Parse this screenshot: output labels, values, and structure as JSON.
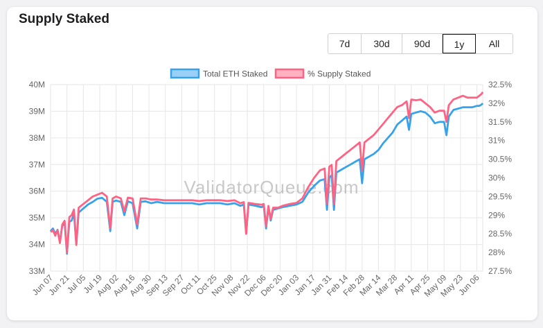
{
  "card": {
    "title": "Supply Staked"
  },
  "range_buttons": [
    {
      "label": "7d",
      "active": false
    },
    {
      "label": "30d",
      "active": false
    },
    {
      "label": "90d",
      "active": false
    },
    {
      "label": "1y",
      "active": true
    },
    {
      "label": "All",
      "active": false
    }
  ],
  "watermark": "ValidatorQueue.com",
  "colors": {
    "eth_line": "#36a2eb",
    "eth_fill": "#9ad0f5",
    "supply_line": "#ff6384",
    "supply_fill": "#ffb1c1",
    "grid": "#e6e6e6"
  },
  "chart_data": {
    "type": "line",
    "title": "",
    "legend_placement": "top-center",
    "grid": true,
    "x_tick_labels": [
      "Jun 07",
      "Jun 21",
      "Jul 05",
      "Jul 19",
      "Aug 02",
      "Aug 16",
      "Aug 30",
      "Sep 13",
      "Sep 27",
      "Oct 11",
      "Oct 25",
      "Nov 08",
      "Nov 22",
      "Dec 06",
      "Dec 20",
      "Jan 03",
      "Jan 17",
      "Jan 31",
      "Feb 14",
      "Feb 28",
      "Mar 14",
      "Mar 28",
      "Apr 11",
      "Apr 25",
      "May 09",
      "May 23",
      "Jun 06"
    ],
    "x_range": [
      "Jun 07",
      "Jun 11"
    ],
    "y_left": {
      "label": "",
      "ticks": [
        "33M",
        "34M",
        "35M",
        "36M",
        "37M",
        "38M",
        "39M",
        "40M"
      ],
      "range": [
        33,
        40
      ],
      "unit": "M"
    },
    "y_right": {
      "label": "",
      "ticks": [
        "27.5%",
        "28%",
        "28.5%",
        "29%",
        "29.5%",
        "30%",
        "30.5%",
        "31%",
        "31.5%",
        "32%",
        "32.5%"
      ],
      "range": [
        27.5,
        32.5
      ],
      "unit": "%"
    },
    "series": [
      {
        "name": "Total ETH Staked",
        "axis": "left",
        "unit": "M",
        "points": [
          [
            "Jun 07",
            34.5
          ],
          [
            "Jun 09",
            34.6
          ],
          [
            "Jun 11",
            34.4
          ],
          [
            "Jun 13",
            34.55
          ],
          [
            "Jun 15",
            34.1
          ],
          [
            "Jun 17",
            34.7
          ],
          [
            "Jun 19",
            34.8
          ],
          [
            "Jun 21",
            33.65
          ],
          [
            "Jun 23",
            34.85
          ],
          [
            "Jun 25",
            34.9
          ],
          [
            "Jun 27",
            35.15
          ],
          [
            "Jun 29",
            34.0
          ],
          [
            "Jul 01",
            35.2
          ],
          [
            "Jul 05",
            35.35
          ],
          [
            "Jul 09",
            35.5
          ],
          [
            "Jul 13",
            35.6
          ],
          [
            "Jul 17",
            35.72
          ],
          [
            "Jul 21",
            35.75
          ],
          [
            "Jul 25",
            35.6
          ],
          [
            "Jul 28",
            34.5
          ],
          [
            "Jul 30",
            35.6
          ],
          [
            "Aug 02",
            35.65
          ],
          [
            "Aug 06",
            35.6
          ],
          [
            "Aug 09",
            35.1
          ],
          [
            "Aug 12",
            35.62
          ],
          [
            "Aug 16",
            35.55
          ],
          [
            "Aug 20",
            34.6
          ],
          [
            "Aug 23",
            35.6
          ],
          [
            "Aug 27",
            35.62
          ],
          [
            "Sep 01",
            35.55
          ],
          [
            "Sep 06",
            35.6
          ],
          [
            "Sep 12",
            35.55
          ],
          [
            "Sep 18",
            35.55
          ],
          [
            "Sep 24",
            35.55
          ],
          [
            "Sep 30",
            35.55
          ],
          [
            "Oct 06",
            35.55
          ],
          [
            "Oct 12",
            35.5
          ],
          [
            "Oct 18",
            35.55
          ],
          [
            "Oct 24",
            35.55
          ],
          [
            "Oct 30",
            35.55
          ],
          [
            "Nov 05",
            35.5
          ],
          [
            "Nov 11",
            35.55
          ],
          [
            "Nov 16",
            35.45
          ],
          [
            "Nov 19",
            35.5
          ],
          [
            "Nov 21",
            34.4
          ],
          [
            "Nov 23",
            35.5
          ],
          [
            "Nov 29",
            35.45
          ],
          [
            "Dec 04",
            35.4
          ],
          [
            "Dec 06",
            35.45
          ],
          [
            "Dec 08",
            34.6
          ],
          [
            "Dec 10",
            35.4
          ],
          [
            "Dec 12",
            34.9
          ],
          [
            "Dec 14",
            35.3
          ],
          [
            "Dec 18",
            35.35
          ],
          [
            "Dec 22",
            35.4
          ],
          [
            "Dec 28",
            35.45
          ],
          [
            "Jan 03",
            35.5
          ],
          [
            "Jan 08",
            35.6
          ],
          [
            "Jan 13",
            35.95
          ],
          [
            "Jan 18",
            36.2
          ],
          [
            "Jan 23",
            36.4
          ],
          [
            "Jan 27",
            36.45
          ],
          [
            "Jan 29",
            35.3
          ],
          [
            "Jan 31",
            36.5
          ],
          [
            "Feb 02",
            36.6
          ],
          [
            "Feb 04",
            35.3
          ],
          [
            "Feb 06",
            36.7
          ],
          [
            "Feb 10",
            36.8
          ],
          [
            "Feb 14",
            36.9
          ],
          [
            "Feb 18",
            37.0
          ],
          [
            "Feb 22",
            37.1
          ],
          [
            "Feb 26",
            37.2
          ],
          [
            "Feb 28",
            36.3
          ],
          [
            "Mar 02",
            37.2
          ],
          [
            "Mar 06",
            37.3
          ],
          [
            "Mar 10",
            37.4
          ],
          [
            "Mar 14",
            37.55
          ],
          [
            "Mar 18",
            37.8
          ],
          [
            "Mar 22",
            38.0
          ],
          [
            "Mar 26",
            38.2
          ],
          [
            "Mar 30",
            38.5
          ],
          [
            "Apr 03",
            38.65
          ],
          [
            "Apr 07",
            38.8
          ],
          [
            "Apr 09",
            38.3
          ],
          [
            "Apr 11",
            38.9
          ],
          [
            "Apr 15",
            38.95
          ],
          [
            "Apr 19",
            39.0
          ],
          [
            "Apr 23",
            38.95
          ],
          [
            "Apr 27",
            38.8
          ],
          [
            "May 01",
            38.55
          ],
          [
            "May 05",
            38.6
          ],
          [
            "May 09",
            38.6
          ],
          [
            "May 11",
            38.1
          ],
          [
            "May 13",
            38.8
          ],
          [
            "May 17",
            39.05
          ],
          [
            "May 21",
            39.1
          ],
          [
            "May 25",
            39.15
          ],
          [
            "May 29",
            39.15
          ],
          [
            "Jun 02",
            39.15
          ],
          [
            "Jun 06",
            39.2
          ],
          [
            "Jun 08",
            39.2
          ],
          [
            "Jun 10",
            39.25
          ],
          [
            "Jun 11",
            39.3
          ]
        ]
      },
      {
        "name": "% Supply Staked",
        "axis": "right",
        "unit": "%",
        "points": [
          [
            "Jun 07",
            28.55
          ],
          [
            "Jun 09",
            28.6
          ],
          [
            "Jun 11",
            28.45
          ],
          [
            "Jun 13",
            28.6
          ],
          [
            "Jun 15",
            28.25
          ],
          [
            "Jun 17",
            28.75
          ],
          [
            "Jun 19",
            28.85
          ],
          [
            "Jun 21",
            28.0
          ],
          [
            "Jun 23",
            28.95
          ],
          [
            "Jun 25",
            29.0
          ],
          [
            "Jun 27",
            29.15
          ],
          [
            "Jun 29",
            28.2
          ],
          [
            "Jul 01",
            29.2
          ],
          [
            "Jul 05",
            29.3
          ],
          [
            "Jul 09",
            29.4
          ],
          [
            "Jul 13",
            29.5
          ],
          [
            "Jul 17",
            29.55
          ],
          [
            "Jul 21",
            29.6
          ],
          [
            "Jul 25",
            29.5
          ],
          [
            "Jul 28",
            28.65
          ],
          [
            "Jul 30",
            29.45
          ],
          [
            "Aug 02",
            29.5
          ],
          [
            "Aug 06",
            29.45
          ],
          [
            "Aug 09",
            29.1
          ],
          [
            "Aug 12",
            29.47
          ],
          [
            "Aug 16",
            29.45
          ],
          [
            "Aug 20",
            28.75
          ],
          [
            "Aug 23",
            29.45
          ],
          [
            "Aug 27",
            29.45
          ],
          [
            "Sep 01",
            29.42
          ],
          [
            "Sep 06",
            29.42
          ],
          [
            "Sep 12",
            29.4
          ],
          [
            "Sep 18",
            29.4
          ],
          [
            "Sep 24",
            29.4
          ],
          [
            "Sep 30",
            29.4
          ],
          [
            "Oct 06",
            29.4
          ],
          [
            "Oct 12",
            29.38
          ],
          [
            "Oct 18",
            29.4
          ],
          [
            "Oct 24",
            29.4
          ],
          [
            "Oct 30",
            29.4
          ],
          [
            "Nov 05",
            29.38
          ],
          [
            "Nov 11",
            29.4
          ],
          [
            "Nov 16",
            29.32
          ],
          [
            "Nov 19",
            29.35
          ],
          [
            "Nov 21",
            28.5
          ],
          [
            "Nov 23",
            29.33
          ],
          [
            "Nov 29",
            29.3
          ],
          [
            "Dec 04",
            29.28
          ],
          [
            "Dec 06",
            29.3
          ],
          [
            "Dec 08",
            28.7
          ],
          [
            "Dec 10",
            29.25
          ],
          [
            "Dec 12",
            28.9
          ],
          [
            "Dec 14",
            29.2
          ],
          [
            "Dec 18",
            29.2
          ],
          [
            "Dec 22",
            29.25
          ],
          [
            "Dec 28",
            29.3
          ],
          [
            "Jan 03",
            29.33
          ],
          [
            "Jan 08",
            29.45
          ],
          [
            "Jan 13",
            29.75
          ],
          [
            "Jan 18",
            30.0
          ],
          [
            "Jan 23",
            30.2
          ],
          [
            "Jan 27",
            30.25
          ],
          [
            "Jan 29",
            29.3
          ],
          [
            "Jan 31",
            30.3
          ],
          [
            "Feb 02",
            30.35
          ],
          [
            "Feb 04",
            29.3
          ],
          [
            "Feb 06",
            30.45
          ],
          [
            "Feb 10",
            30.55
          ],
          [
            "Feb 14",
            30.65
          ],
          [
            "Feb 18",
            30.75
          ],
          [
            "Feb 22",
            30.85
          ],
          [
            "Feb 26",
            30.95
          ],
          [
            "Feb 28",
            30.2
          ],
          [
            "Mar 02",
            30.95
          ],
          [
            "Mar 06",
            31.05
          ],
          [
            "Mar 10",
            31.15
          ],
          [
            "Mar 14",
            31.3
          ],
          [
            "Mar 18",
            31.45
          ],
          [
            "Mar 22",
            31.6
          ],
          [
            "Mar 26",
            31.75
          ],
          [
            "Mar 30",
            31.9
          ],
          [
            "Apr 03",
            31.95
          ],
          [
            "Apr 07",
            32.05
          ],
          [
            "Apr 09",
            31.6
          ],
          [
            "Apr 11",
            32.1
          ],
          [
            "Apr 15",
            32.08
          ],
          [
            "Apr 19",
            32.1
          ],
          [
            "Apr 23",
            32.0
          ],
          [
            "Apr 27",
            31.9
          ],
          [
            "May 01",
            31.75
          ],
          [
            "May 05",
            31.8
          ],
          [
            "May 09",
            31.8
          ],
          [
            "May 11",
            31.5
          ],
          [
            "May 13",
            31.95
          ],
          [
            "May 17",
            32.1
          ],
          [
            "May 21",
            32.15
          ],
          [
            "May 25",
            32.2
          ],
          [
            "May 29",
            32.15
          ],
          [
            "Jun 02",
            32.15
          ],
          [
            "Jun 06",
            32.15
          ],
          [
            "Jun 08",
            32.2
          ],
          [
            "Jun 10",
            32.25
          ],
          [
            "Jun 11",
            32.3
          ]
        ]
      }
    ]
  }
}
